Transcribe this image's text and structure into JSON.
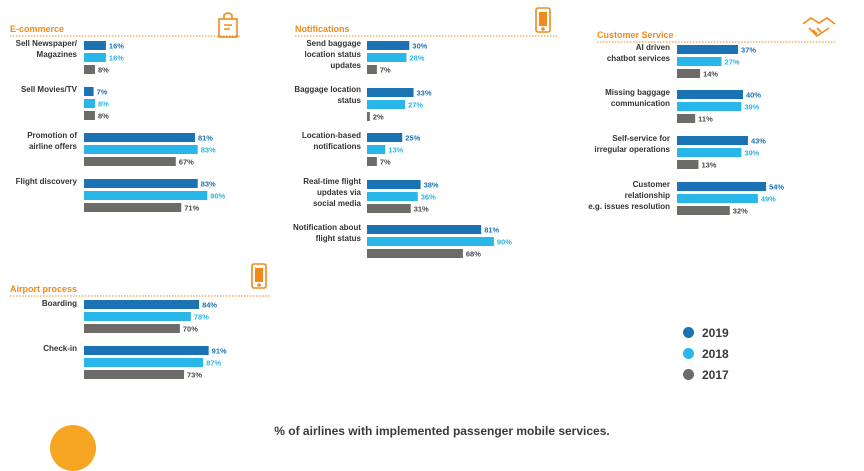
{
  "caption": "% of airlines with implemented passenger mobile services.",
  "colors": {
    "2019": "#1b73b3",
    "2018": "#29b6e8",
    "2017": "#6d6b67",
    "accent": "#f08a1c"
  },
  "legend": [
    {
      "label": "2019",
      "color": "#1b73b3"
    },
    {
      "label": "2018",
      "color": "#29b6e8"
    },
    {
      "label": "2017",
      "color": "#6d6b67"
    }
  ],
  "chart_data": [
    {
      "type": "bar",
      "orientation": "horizontal",
      "title": "E-commerce",
      "icon": "shopping-bag-icon",
      "series_names": [
        "2019",
        "2018",
        "2017"
      ],
      "categories": [
        "Sell Newspaper/ Magazines",
        "Sell Movies/TV",
        "Promotion of airline offers",
        "Flight discovery"
      ],
      "series": [
        {
          "name": "2019",
          "values": [
            16,
            7,
            81,
            83
          ]
        },
        {
          "name": "2018",
          "values": [
            16,
            8,
            83,
            90
          ]
        },
        {
          "name": "2017",
          "values": [
            8,
            8,
            67,
            71
          ]
        }
      ]
    },
    {
      "type": "bar",
      "orientation": "horizontal",
      "title": "Notifications",
      "icon": "phone-notification-icon",
      "categories": [
        "Send baggage location status updates",
        "Baggage location status",
        "Location-based notifications",
        "Real-time flight updates via social media",
        "Notification about flight status"
      ],
      "series": [
        {
          "name": "2019",
          "values": [
            30,
            33,
            25,
            38,
            81
          ]
        },
        {
          "name": "2018",
          "values": [
            28,
            27,
            13,
            36,
            90
          ]
        },
        {
          "name": "2017",
          "values": [
            7,
            2,
            7,
            31,
            68
          ]
        }
      ]
    },
    {
      "type": "bar",
      "orientation": "horizontal",
      "title": "Customer Service",
      "icon": "handshake-icon",
      "categories": [
        "AI driven chatbot services",
        "Missing baggage communication",
        "Self-service for irregular operations",
        "Customer relationship e.g. issues resolution"
      ],
      "series": [
        {
          "name": "2019",
          "values": [
            37,
            40,
            43,
            54
          ]
        },
        {
          "name": "2018",
          "values": [
            27,
            39,
            39,
            49
          ]
        },
        {
          "name": "2017",
          "values": [
            14,
            11,
            13,
            32
          ]
        }
      ]
    },
    {
      "type": "bar",
      "orientation": "horizontal",
      "title": "Airport process",
      "icon": "phone-boarding-icon",
      "categories": [
        "Boarding",
        "Check-in"
      ],
      "series": [
        {
          "name": "2019",
          "values": [
            84,
            91
          ]
        },
        {
          "name": "2018",
          "values": [
            78,
            87
          ]
        },
        {
          "name": "2017",
          "values": [
            70,
            73
          ]
        }
      ]
    }
  ]
}
